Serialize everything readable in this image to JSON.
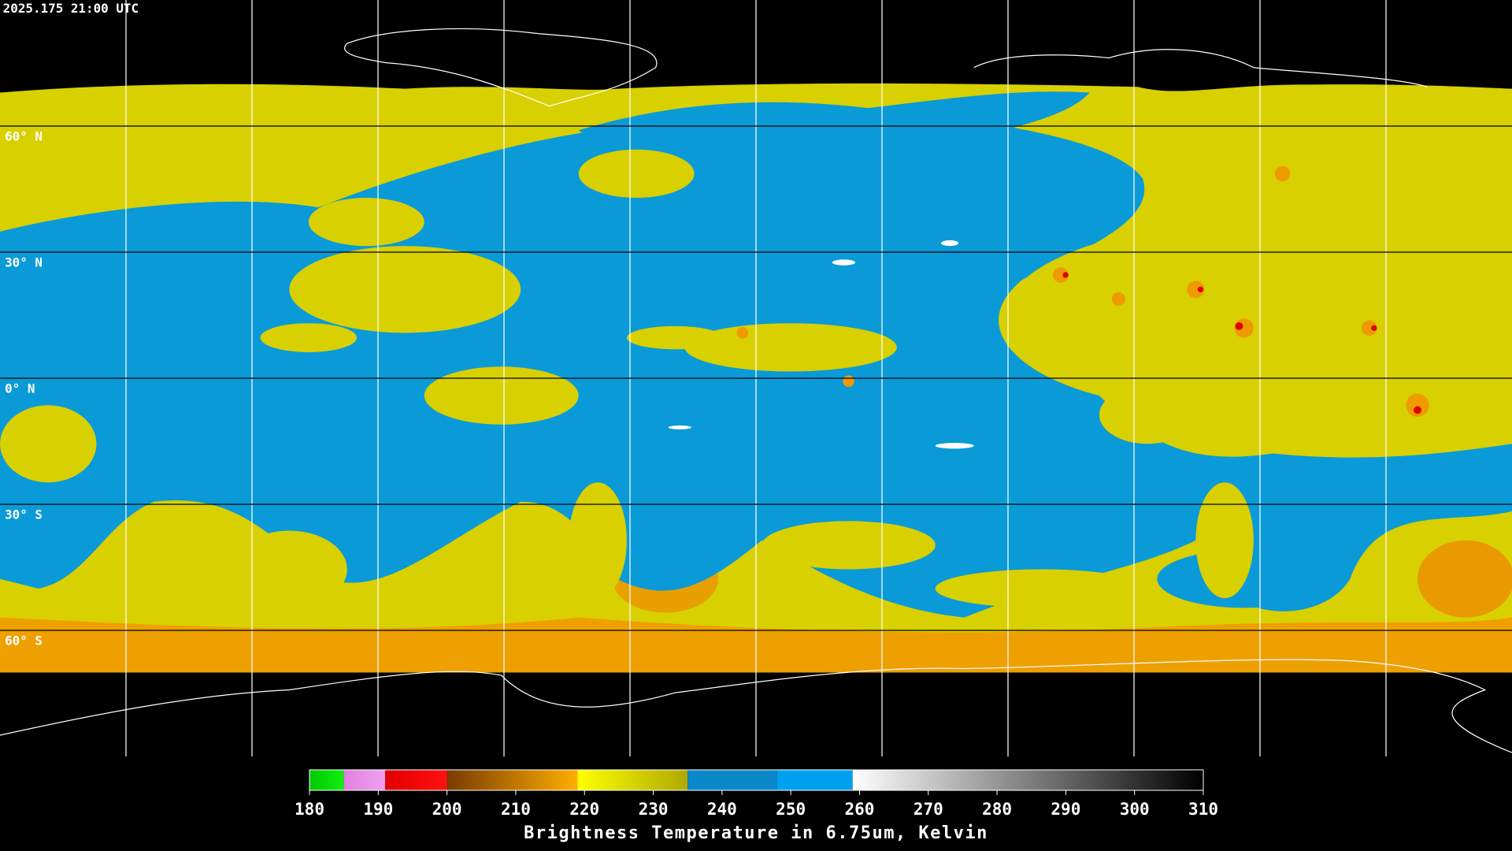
{
  "header": {
    "title": "2025.175 21:00 UTC"
  },
  "graticule": {
    "lat_lines": [
      {
        "value": 60,
        "label": "60° N"
      },
      {
        "value": 30,
        "label": "30° N"
      },
      {
        "value": 0,
        "label": "0° N"
      },
      {
        "value": -30,
        "label": "30° S"
      },
      {
        "value": -60,
        "label": "60° S"
      }
    ]
  },
  "colorbar": {
    "label": "Brightness Temperature in 6.75um, Kelvin",
    "range": [
      180,
      310
    ],
    "ticks": [
      180,
      190,
      200,
      210,
      220,
      230,
      240,
      250,
      260,
      270,
      280,
      290,
      300,
      310
    ],
    "segments": [
      {
        "from": 180,
        "to": 185,
        "colors": [
          "#00c800",
          "#10f010"
        ]
      },
      {
        "from": 185,
        "to": 191,
        "colors": [
          "#e080e0",
          "#f0a0f0"
        ]
      },
      {
        "from": 191,
        "to": 200,
        "colors": [
          "#e00000",
          "#ff1010"
        ]
      },
      {
        "from": 200,
        "to": 219,
        "colors": [
          "#7a3a00",
          "#ffae00"
        ]
      },
      {
        "from": 219,
        "to": 235,
        "colors": [
          "#ffff00",
          "#b0a800"
        ]
      },
      {
        "from": 235,
        "to": 248,
        "colors": [
          "#0a88c8",
          "#0a88c8"
        ]
      },
      {
        "from": 248,
        "to": 259,
        "colors": [
          "#00a0f0",
          "#00a0f0"
        ]
      },
      {
        "from": 259,
        "to": 310,
        "colors": [
          "#ffffff",
          "#000000"
        ]
      }
    ]
  }
}
